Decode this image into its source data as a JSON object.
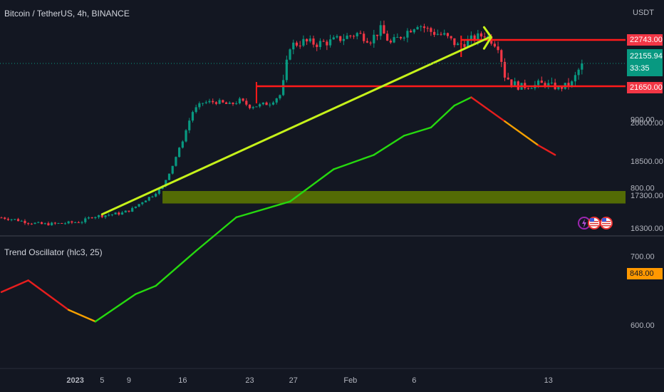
{
  "symbol_title": "Bitcoin / TetherUS, 4h, BINANCE",
  "quote_unit": "USDT",
  "indicator_title": "Trend Oscillator (hlc3, 25)",
  "price_tags": {
    "resistance": "22743.00",
    "live_price": "22155.94",
    "countdown": "33:35",
    "support": "21650.00"
  },
  "oscillator_tag": "848.00",
  "colors": {
    "background": "#131722",
    "up_candle": "#089981",
    "down_candle": "#f23645",
    "trendline": "#c6f21a",
    "level_line": "#ff1a1a",
    "zone_fill": "#5f7a00",
    "osc_up": "#26d90f",
    "osc_down": "#e61e1e",
    "osc_transition": "#f5a000"
  },
  "icons": [
    "lightning-icon",
    "us-flag-icon",
    "us-flag-icon"
  ],
  "chart_data": [
    {
      "type": "candlestick",
      "title": "Bitcoin / TetherUS, 4h, BINANCE",
      "y_unit": "USDT",
      "y_ticks": [
        16300,
        17300,
        18500,
        20000,
        21650,
        22743
      ],
      "x_ticks": [
        "2023",
        "5",
        "9",
        "16",
        "23",
        "27",
        "Feb",
        "6",
        "13"
      ],
      "price_path_close": [
        [
          0,
          16620
        ],
        [
          4,
          16560
        ],
        [
          8,
          16470
        ],
        [
          12,
          16420
        ],
        [
          16,
          16430
        ],
        [
          20,
          16460
        ],
        [
          24,
          16500
        ],
        [
          27,
          16650
        ],
        [
          30,
          16680
        ],
        [
          33,
          16720
        ],
        [
          36,
          16760
        ],
        [
          39,
          16880
        ],
        [
          42,
          17110
        ],
        [
          45,
          17300
        ],
        [
          48,
          17600
        ],
        [
          51,
          18350
        ],
        [
          54,
          19300
        ],
        [
          57,
          20500
        ],
        [
          60,
          20900
        ],
        [
          64,
          20950
        ],
        [
          68,
          20800
        ],
        [
          71,
          21000
        ],
        [
          74,
          20750
        ],
        [
          77,
          20780
        ],
        [
          80,
          20900
        ],
        [
          83,
          21250
        ],
        [
          86,
          22600
        ],
        [
          90,
          22700
        ],
        [
          94,
          22650
        ],
        [
          98,
          22700
        ],
        [
          102,
          22800
        ],
        [
          106,
          22900
        ],
        [
          110,
          22750
        ],
        [
          113,
          23000
        ],
        [
          116,
          22650
        ],
        [
          120,
          22900
        ],
        [
          124,
          23150
        ],
        [
          128,
          22950
        ],
        [
          132,
          22850
        ],
        [
          136,
          22600
        ],
        [
          140,
          22750
        ],
        [
          144,
          22880
        ],
        [
          148,
          22600
        ],
        [
          150,
          21900
        ],
        [
          154,
          21600
        ],
        [
          158,
          21650
        ],
        [
          162,
          21700
        ],
        [
          166,
          21550
        ],
        [
          170,
          21700
        ],
        [
          173,
          22155.94
        ]
      ],
      "x_tick_bar_index": [
        22,
        30,
        38,
        54,
        74,
        87,
        104,
        123,
        163
      ],
      "annotations": [
        {
          "type": "trendline",
          "from": [
            30,
            16720
          ],
          "to": [
            140,
            22900
          ],
          "arrow": true
        },
        {
          "type": "level",
          "from": [
            76,
            21650
          ],
          "to": [
            180,
            21650
          ]
        },
        {
          "type": "level",
          "from": [
            137,
            22743
          ],
          "to": [
            180,
            22743
          ]
        },
        {
          "type": "zone",
          "from": [
            48,
            17050
          ],
          "to": [
            180,
            17450
          ]
        }
      ],
      "last_price": 22155.94,
      "last_price_line": "dotted"
    },
    {
      "type": "line",
      "title": "Trend Oscillator (hlc3, 25)",
      "y_ticks": [
        600,
        700,
        800,
        900
      ],
      "last_value": 848.0,
      "points": [
        [
          0,
          648
        ],
        [
          8,
          665
        ],
        [
          20,
          622
        ],
        [
          28,
          605
        ],
        [
          40,
          645
        ],
        [
          46,
          657
        ],
        [
          58,
          708
        ],
        [
          70,
          757
        ],
        [
          86,
          780
        ],
        [
          99,
          827
        ],
        [
          111,
          848
        ],
        [
          120,
          876
        ],
        [
          128,
          888
        ],
        [
          135,
          920
        ],
        [
          140,
          932
        ],
        [
          150,
          897
        ],
        [
          160,
          862
        ],
        [
          165,
          848
        ]
      ],
      "segment_colors": [
        "down",
        "down",
        "transition",
        "up",
        "up",
        "up",
        "up",
        "up",
        "up",
        "up",
        "up",
        "up",
        "up",
        "up",
        "down",
        "transition",
        "down"
      ]
    }
  ]
}
